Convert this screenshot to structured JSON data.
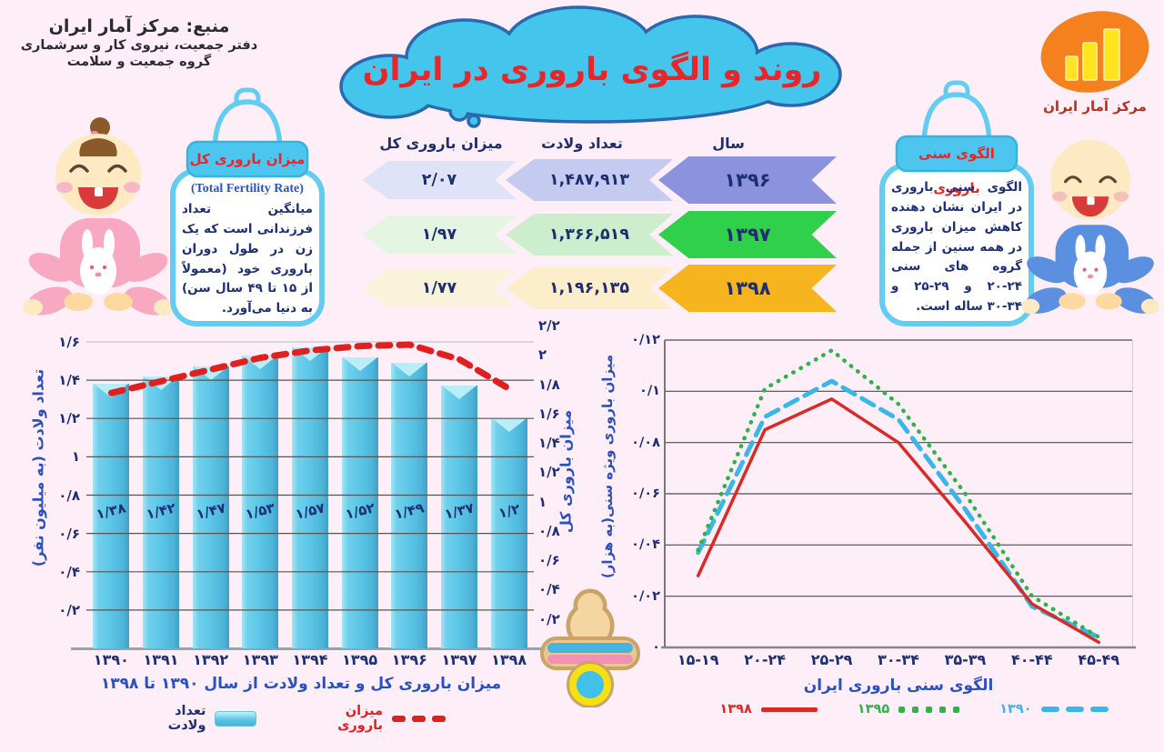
{
  "page": {
    "background": "#fdeef8"
  },
  "title": "روند و الگوی باروری در ایران",
  "source": {
    "line1": "منبع: مرکز آمار ایران",
    "line2": "دفتر جمعیت، نیروی کار و سرشماری",
    "line3": "گروه جمعیت و سلامت"
  },
  "logo": {
    "label": "مرکز آمار ایران",
    "colors": {
      "ellipse": "#f5801e",
      "bars": "#ffe41f"
    }
  },
  "left_bottle": {
    "title": "میزان باروری کل",
    "subtitle_en": "(Total Fertility Rate)",
    "body": "میانگین تعداد فرزندانی است که یک زن در طول دوران باروری خود (معمولاً از ۱۵ تا ۴۹ سال سن) به دنیا می‌آورد."
  },
  "right_bottle": {
    "title": "الگوی سنی باروری",
    "body": "الگوی سنی باروری در ایران نشان دهنده کاهش میزان باروری در همه سنین از جمله گروه های سنی ⁦۲۰-۲۴⁩ و ⁦۲۵-۲۹⁩ و ⁦۳۰-۳۴⁩ ساله است."
  },
  "table": {
    "headers": {
      "year": "سال",
      "births": "تعداد ولادت",
      "tfr": "میزان باروری کل"
    },
    "rows": [
      {
        "year": "۱۳۹۶",
        "births": "۱,۴۸۷,۹۱۳",
        "tfr": "۲/۰۷",
        "colors": {
          "year": "#8b93df",
          "births": "#c5caf1",
          "tfr": "#e0e3f8"
        }
      },
      {
        "year": "۱۳۹۷",
        "births": "۱,۳۶۶,۵۱۹",
        "tfr": "۱/۹۷",
        "colors": {
          "year": "#30d04a",
          "births": "#cdeecd",
          "tfr": "#e4f5e1"
        }
      },
      {
        "year": "۱۳۹۸",
        "births": "۱,۱۹۶,۱۳۵",
        "tfr": "۱/۷۷",
        "colors": {
          "year": "#f6b41e",
          "births": "#fdeecb",
          "tfr": "#f8f3da"
        }
      }
    ]
  },
  "chart_data": [
    {
      "type": "bar",
      "title": "میزان باروری کل و تعداد ولادت از سال ۱۳۹۰ تا ۱۳۹۸",
      "categories": [
        "۱۳۹۰",
        "۱۳۹۱",
        "۱۳۹۲",
        "۱۳۹۳",
        "۱۳۹۴",
        "۱۳۹۵",
        "۱۳۹۶",
        "۱۳۹۷",
        "۱۳۹۸"
      ],
      "bar_series": {
        "name": "تعداد ولادت",
        "color": "#5cc6e7",
        "values": [
          1.38,
          1.42,
          1.47,
          1.53,
          1.57,
          1.52,
          1.49,
          1.37,
          1.2
        ],
        "labels": [
          "۱/۳۸",
          "۱/۴۲",
          "۱/۴۷",
          "۱/۵۳",
          "۱/۵۷",
          "۱/۵۲",
          "۱/۴۹",
          "۱/۳۷",
          "۱/۲"
        ]
      },
      "line_series": {
        "name": "میزان باروری",
        "color": "#e01f1f",
        "style": "dashed",
        "values": [
          1.74,
          1.82,
          1.9,
          1.98,
          2.03,
          2.06,
          2.07,
          1.97,
          1.77
        ]
      },
      "left_axis": {
        "label": "تعداد ولادت (به میلیون نفر)",
        "max": 1.6,
        "step": 0.2,
        "ticks": [
          "۰",
          "۰/۲",
          "۰/۴",
          "۰/۶",
          "۰/۸",
          "۱",
          "۱/۲",
          "۱/۴",
          "۱/۶"
        ]
      },
      "right_axis": {
        "label": "میزان باروری کل",
        "max": 2.2,
        "step": 0.2,
        "ticks": [
          "۰",
          "۰/۲",
          "۰/۴",
          "۰/۶",
          "۰/۸",
          "۱",
          "۱/۲",
          "۱/۴",
          "۱/۶",
          "۱/۸",
          "۲",
          "۲/۲"
        ]
      },
      "grid": true,
      "legend_position": "bottom"
    },
    {
      "type": "line",
      "title": "الگوی سنی باروری ایران",
      "ylabel": "میزان باروری ویژه سنی(به هزار)",
      "categories": [
        "۱۵-۱۹",
        "۲۰-۲۴",
        "۲۵-۲۹",
        "۳۰-۳۴",
        "۳۵-۳۹",
        "۴۰-۴۴",
        "۴۵-۴۹"
      ],
      "ymax": 0.12,
      "ystep": 0.02,
      "yticks": [
        "۰",
        "۰/۰۲",
        "۰/۰۴",
        "۰/۰۶",
        "۰/۰۸",
        "۰/۱",
        "۰/۱۲"
      ],
      "series": [
        {
          "name": "۱۳۹۰",
          "style": "dashed",
          "color": "#3ab7e8",
          "values": [
            0.037,
            0.09,
            0.104,
            0.089,
            0.054,
            0.016,
            0.004
          ]
        },
        {
          "name": "۱۳۹۵",
          "style": "dotted",
          "color": "#2eb34b",
          "values": [
            0.038,
            0.101,
            0.116,
            0.095,
            0.06,
            0.02,
            0.004
          ]
        },
        {
          "name": "۱۳۹۸",
          "style": "solid",
          "color": "#d92b26",
          "values": [
            0.028,
            0.085,
            0.097,
            0.08,
            0.049,
            0.017,
            0.002
          ]
        }
      ],
      "grid": true,
      "legend_position": "bottom"
    }
  ]
}
